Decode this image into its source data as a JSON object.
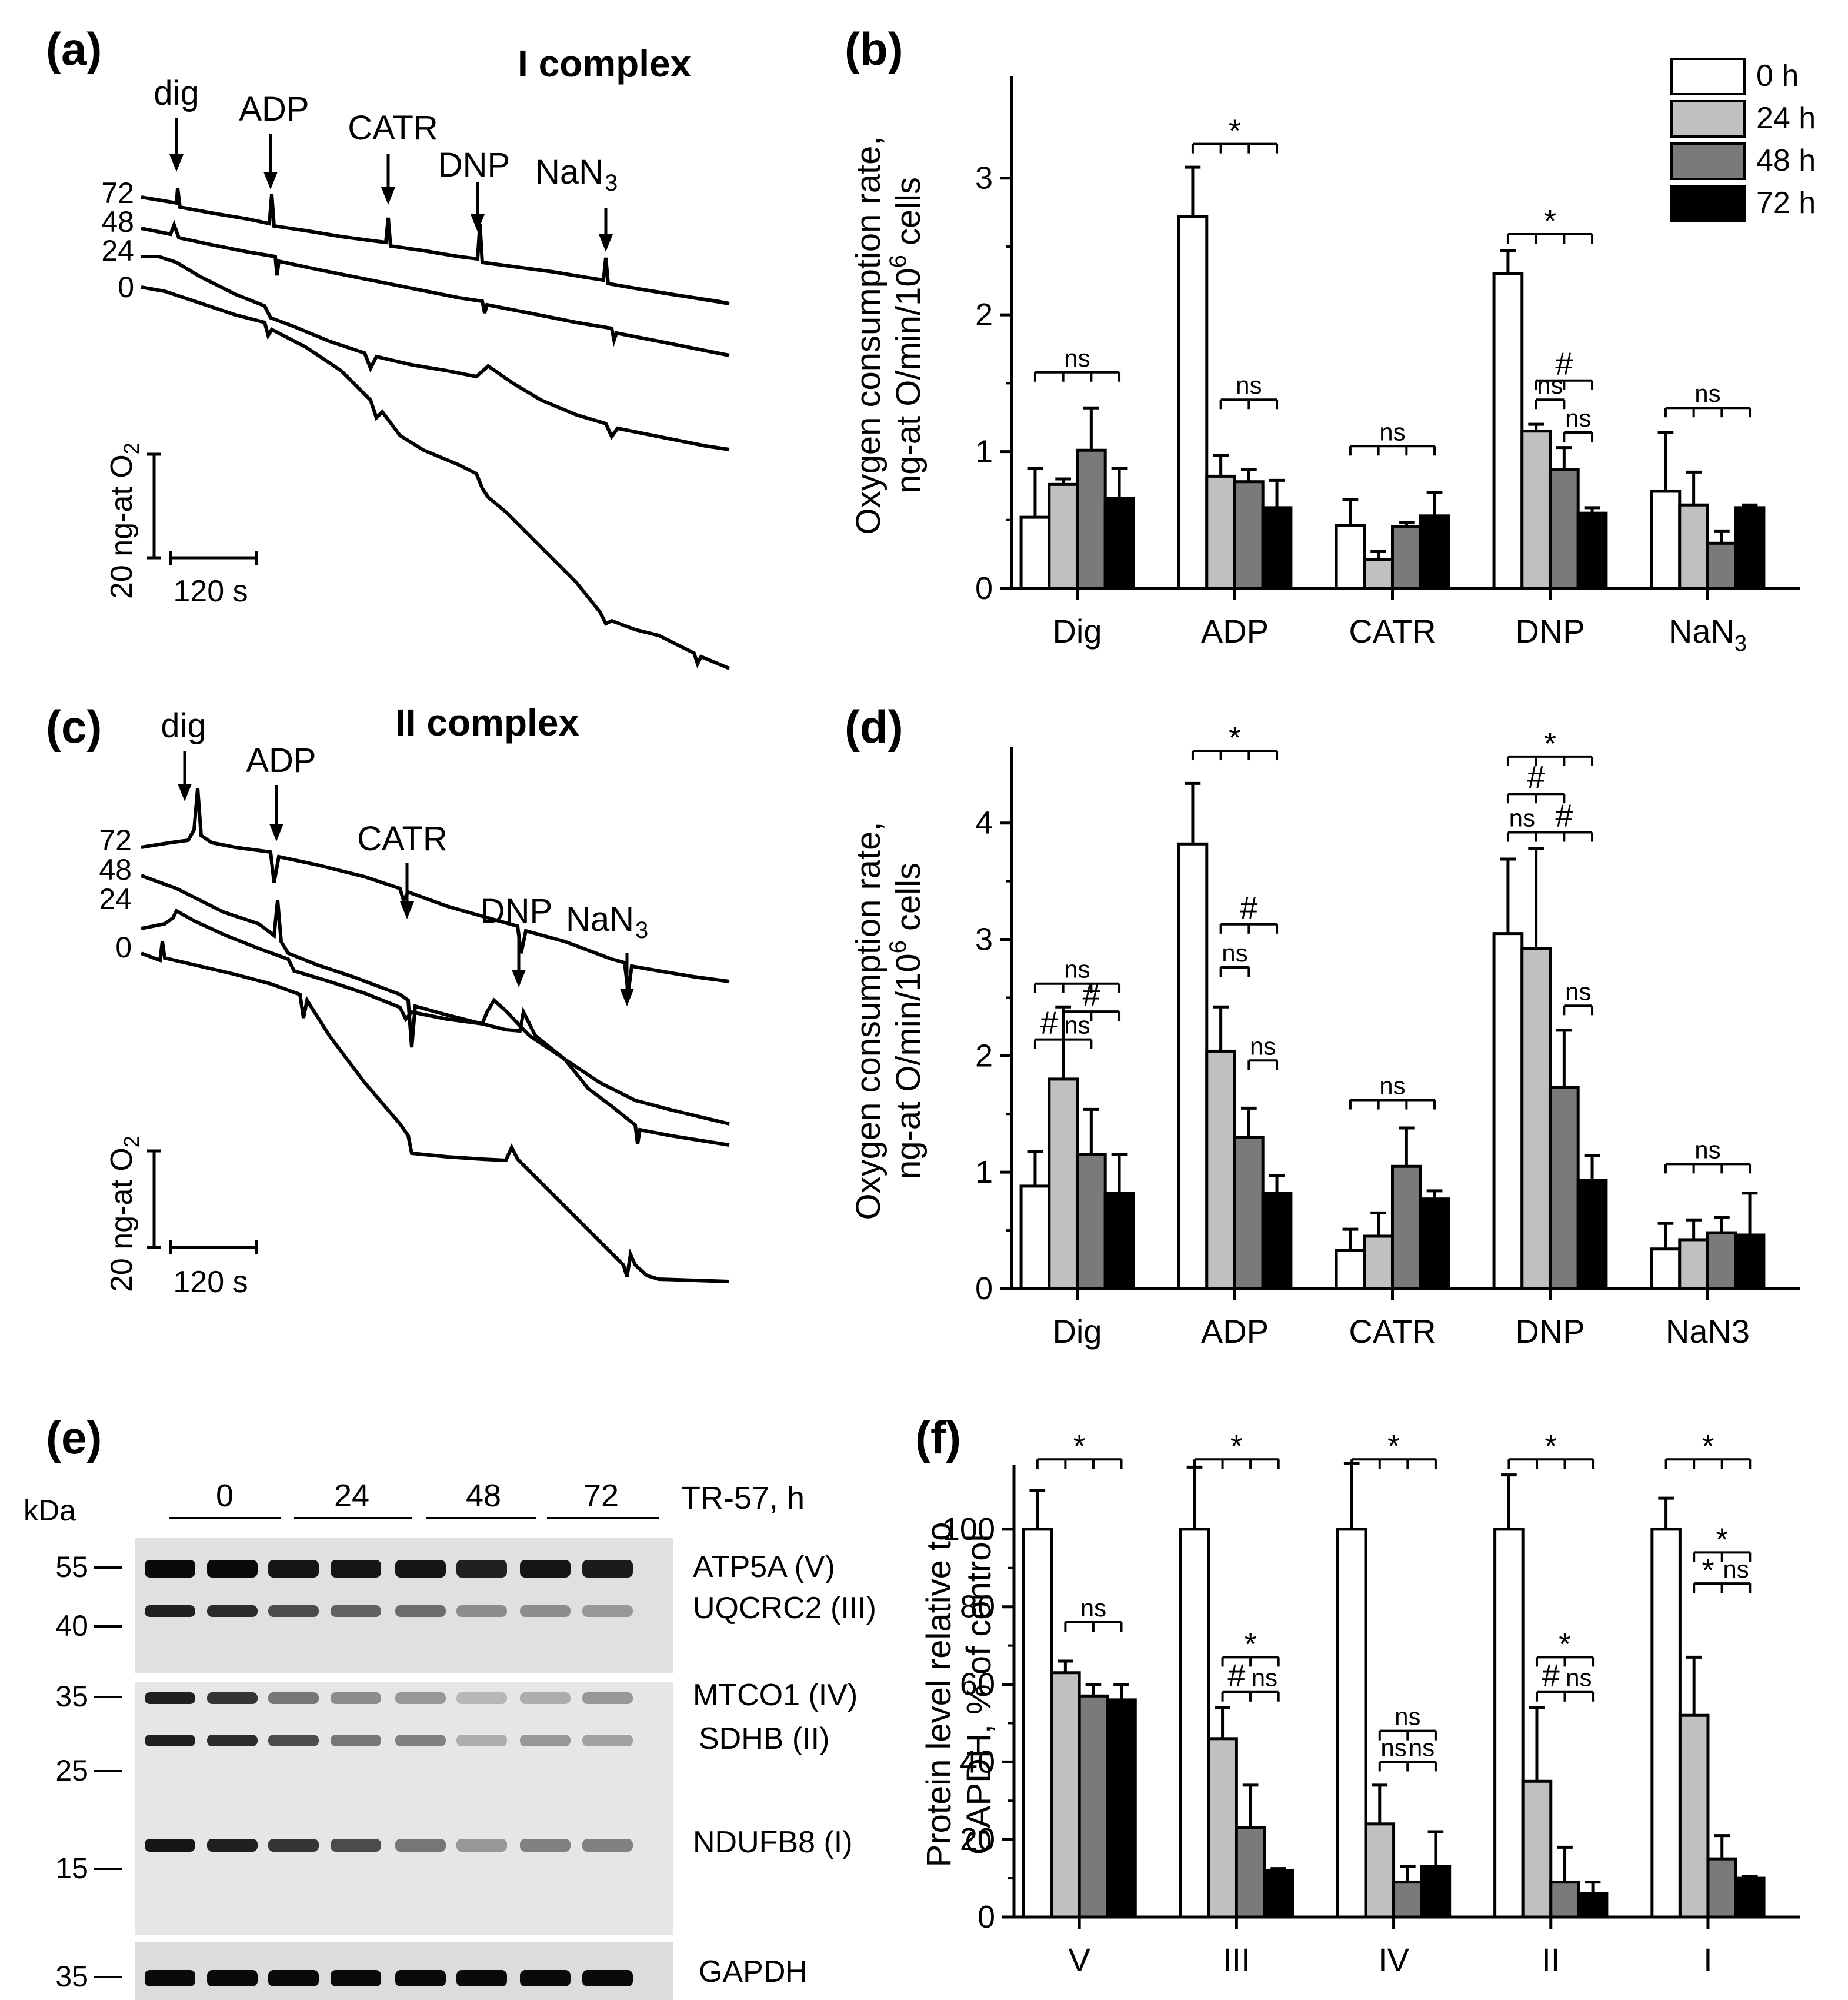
{
  "panels": {
    "a": {
      "letter": "(a)",
      "title": "I complex",
      "markers": [
        "dig",
        "ADP",
        "CATR",
        "DNP",
        "NaN",
        "3"
      ],
      "trace_labels": [
        "72",
        "48",
        "24",
        "0"
      ],
      "scale_y": "20 ng-at O",
      "scale_y_sub": "2",
      "scale_x": "120 s"
    },
    "c": {
      "letter": "(c)",
      "title": "II complex",
      "markers": [
        "dig",
        "ADP",
        "CATR",
        "DNP",
        "NaN",
        "3"
      ],
      "trace_labels": [
        "72",
        "48",
        "24",
        "0"
      ],
      "scale_y": "20 ng-at O",
      "scale_y_sub": "2",
      "scale_x": "120 s"
    },
    "e": {
      "letter": "(e)",
      "kda_label": "kDa",
      "axis_title": "TR-57, h",
      "lanes": [
        "0",
        "24",
        "48",
        "72"
      ],
      "mw_markers": [
        "55",
        "40",
        "35",
        "25",
        "15",
        "35"
      ],
      "proteins": [
        "ATP5A (V)",
        "UQCRC2 (III)",
        "MTCO1 (IV)",
        "SDHB (II)",
        "NDUFB8 (I)",
        "GAPDH"
      ],
      "band_intensity": {
        "ATP5A (V)": [
          1.0,
          1.0,
          0.95,
          0.95,
          0.95,
          0.9,
          0.95,
          0.92
        ],
        "UQCRC2 (III)": [
          0.9,
          0.85,
          0.7,
          0.6,
          0.55,
          0.4,
          0.4,
          0.35
        ],
        "MTCO1 (IV)": [
          0.9,
          0.8,
          0.5,
          0.4,
          0.35,
          0.2,
          0.25,
          0.35
        ],
        "SDHB (II)": [
          0.9,
          0.85,
          0.7,
          0.5,
          0.45,
          0.25,
          0.35,
          0.3
        ],
        "NDUFB8 (I)": [
          0.95,
          0.9,
          0.8,
          0.7,
          0.5,
          0.35,
          0.45,
          0.45
        ],
        "GAPDH": [
          1.0,
          1.0,
          1.0,
          1.0,
          1.0,
          1.0,
          1.0,
          1.0
        ]
      }
    },
    "legend": [
      "0 h",
      "24 h",
      "48 h",
      "72 h"
    ],
    "colors": [
      "#ffffff",
      "#c0c0c0",
      "#7a7a7a",
      "#000000"
    ]
  },
  "chart_data": [
    {
      "id": "b",
      "letter": "(b)",
      "type": "bar",
      "ylabel_line1": "Oxygen consumption rate,",
      "ylabel_line2": "ng-at O/min/10",
      "ylabel_sup": "6",
      "ylabel_line2_end": " cells",
      "ylim": [
        0,
        3.7
      ],
      "yticks": [
        "0",
        "1",
        "2",
        "3"
      ],
      "categories": [
        "Dig",
        "ADP",
        "CATR",
        "DNP",
        "NaN"
      ],
      "category_sub": [
        "",
        "",
        "",
        "",
        "3"
      ],
      "series": [
        {
          "name": "0 h",
          "values": [
            0.52,
            2.72,
            0.46,
            2.3,
            0.71
          ],
          "errors": [
            0.36,
            0.36,
            0.19,
            0.17,
            0.43
          ]
        },
        {
          "name": "24 h",
          "values": [
            0.76,
            0.82,
            0.21,
            1.15,
            0.61
          ],
          "errors": [
            0.04,
            0.15,
            0.06,
            0.05,
            0.24
          ]
        },
        {
          "name": "48 h",
          "values": [
            1.01,
            0.78,
            0.45,
            0.87,
            0.33
          ],
          "errors": [
            0.31,
            0.09,
            0.03,
            0.16,
            0.09
          ]
        },
        {
          "name": "72 h",
          "values": [
            0.66,
            0.59,
            0.53,
            0.55,
            0.59
          ],
          "errors": [
            0.22,
            0.2,
            0.17,
            0.04,
            0.02
          ]
        }
      ],
      "annotations": [
        {
          "text": "ns",
          "cat": 0,
          "from": 0,
          "to": 3,
          "y": 1.58
        },
        {
          "text": "*",
          "cat": 1,
          "from": 0,
          "to": 3,
          "y": 3.25
        },
        {
          "text": "ns",
          "cat": 1,
          "from": 1,
          "to": 3,
          "y": 1.38
        },
        {
          "text": "ns",
          "cat": 2,
          "from": 0,
          "to": 3,
          "y": 1.04
        },
        {
          "text": "*",
          "cat": 3,
          "from": 0,
          "to": 3,
          "y": 2.59
        },
        {
          "text": "#",
          "cat": 3,
          "from": 1,
          "to": 3,
          "y": 1.52
        },
        {
          "text": "ns",
          "cat": 3,
          "from": 1,
          "to": 2,
          "y": 1.38
        },
        {
          "text": "ns",
          "cat": 3,
          "from": 2,
          "to": 3,
          "y": 1.14
        },
        {
          "text": "ns",
          "cat": 4,
          "from": 0,
          "to": 3,
          "y": 1.32
        }
      ]
    },
    {
      "id": "d",
      "letter": "(d)",
      "type": "bar",
      "ylabel_line1": "Oxygen consumption rate,",
      "ylabel_line2": "ng-at O/min/10",
      "ylabel_sup": "6",
      "ylabel_line2_end": " cells",
      "ylim": [
        0,
        4.6
      ],
      "yticks": [
        "0",
        "1",
        "2",
        "3",
        "4"
      ],
      "categories": [
        "Dig",
        "ADP",
        "CATR",
        "DNP",
        "NaN3"
      ],
      "category_sub": [
        "",
        "",
        "",
        "",
        ""
      ],
      "series": [
        {
          "name": "0 h",
          "values": [
            0.88,
            3.82,
            0.33,
            3.05,
            0.34
          ],
          "errors": [
            0.3,
            0.52,
            0.18,
            0.64,
            0.22
          ]
        },
        {
          "name": "24 h",
          "values": [
            1.8,
            2.04,
            0.45,
            2.92,
            0.42
          ],
          "errors": [
            0.62,
            0.38,
            0.2,
            0.86,
            0.17
          ]
        },
        {
          "name": "48 h",
          "values": [
            1.15,
            1.3,
            1.05,
            1.73,
            0.48
          ],
          "errors": [
            0.39,
            0.25,
            0.33,
            0.49,
            0.13
          ]
        },
        {
          "name": "72 h",
          "values": [
            0.82,
            0.82,
            0.77,
            0.93,
            0.46
          ],
          "errors": [
            0.33,
            0.15,
            0.07,
            0.21,
            0.36
          ]
        }
      ],
      "annotations": [
        {
          "text": "ns",
          "cat": 0,
          "from": 0,
          "to": 3,
          "y": 2.62
        },
        {
          "text": "#",
          "cat": 0,
          "from": 1,
          "to": 3,
          "y": 2.38
        },
        {
          "text": "#",
          "cat": 0,
          "from": 0,
          "to": 1,
          "y": 2.14
        },
        {
          "text": "ns",
          "cat": 0,
          "from": 1,
          "to": 2,
          "y": 2.14
        },
        {
          "text": "*",
          "cat": 1,
          "from": 0,
          "to": 3,
          "y": 4.62
        },
        {
          "text": "#",
          "cat": 1,
          "from": 1,
          "to": 3,
          "y": 3.13
        },
        {
          "text": "ns",
          "cat": 1,
          "from": 1,
          "to": 2,
          "y": 2.76
        },
        {
          "text": "ns",
          "cat": 1,
          "from": 2,
          "to": 3,
          "y": 1.96
        },
        {
          "text": "ns",
          "cat": 2,
          "from": 0,
          "to": 3,
          "y": 1.62
        },
        {
          "text": "*",
          "cat": 3,
          "from": 0,
          "to": 3,
          "y": 4.57
        },
        {
          "text": "#",
          "cat": 3,
          "from": 0,
          "to": 2,
          "y": 4.25
        },
        {
          "text": "ns",
          "cat": 3,
          "from": 0,
          "to": 1,
          "y": 3.92
        },
        {
          "text": "#",
          "cat": 3,
          "from": 1,
          "to": 3,
          "y": 3.92
        },
        {
          "text": "ns",
          "cat": 3,
          "from": 2,
          "to": 3,
          "y": 2.43
        },
        {
          "text": "ns",
          "cat": 4,
          "from": 0,
          "to": 3,
          "y": 1.07
        }
      ]
    },
    {
      "id": "f",
      "letter": "(f)",
      "type": "bar",
      "ylabel_line1": "Protein level relative to",
      "ylabel_line2": "GAPDH, % of control",
      "ylabel_sup": "",
      "ylabel_line2_end": "",
      "ylim": [
        0,
        115
      ],
      "yticks": [
        "0",
        "20",
        "40",
        "60",
        "80",
        "100"
      ],
      "categories": [
        "V",
        "III",
        "IV",
        "II",
        "I"
      ],
      "category_sub": [
        "",
        "",
        "",
        "",
        ""
      ],
      "series": [
        {
          "name": "0 h",
          "values": [
            100,
            100,
            100,
            100,
            100
          ],
          "errors": [
            10,
            16,
            17,
            14,
            8
          ]
        },
        {
          "name": "24 h",
          "values": [
            63,
            46,
            24,
            35,
            52
          ],
          "errors": [
            3,
            8,
            10,
            19,
            15
          ]
        },
        {
          "name": "48 h",
          "values": [
            57,
            23,
            9,
            9,
            15
          ],
          "errors": [
            3,
            11,
            4,
            9,
            6
          ]
        },
        {
          "name": "72 h",
          "values": [
            56,
            12,
            13,
            6,
            10
          ],
          "errors": [
            4,
            0.5,
            9,
            3,
            0.5
          ]
        }
      ],
      "annotations": [
        {
          "text": "*",
          "cat": 0,
          "from": 0,
          "to": 3,
          "y": 118
        },
        {
          "text": "ns",
          "cat": 0,
          "from": 1,
          "to": 3,
          "y": 76
        },
        {
          "text": "*",
          "cat": 1,
          "from": 0,
          "to": 3,
          "y": 118
        },
        {
          "text": "*",
          "cat": 1,
          "from": 1,
          "to": 3,
          "y": 67
        },
        {
          "text": "#",
          "cat": 1,
          "from": 1,
          "to": 2,
          "y": 58
        },
        {
          "text": "ns",
          "cat": 1,
          "from": 2,
          "to": 3,
          "y": 58
        },
        {
          "text": "*",
          "cat": 2,
          "from": 0,
          "to": 3,
          "y": 118
        },
        {
          "text": "ns",
          "cat": 2,
          "from": 1,
          "to": 3,
          "y": 48
        },
        {
          "text": "ns",
          "cat": 2,
          "from": 1,
          "to": 2,
          "y": 40
        },
        {
          "text": "ns",
          "cat": 2,
          "from": 2,
          "to": 3,
          "y": 40
        },
        {
          "text": "*",
          "cat": 3,
          "from": 0,
          "to": 3,
          "y": 118
        },
        {
          "text": "*",
          "cat": 3,
          "from": 1,
          "to": 3,
          "y": 67
        },
        {
          "text": "#",
          "cat": 3,
          "from": 1,
          "to": 2,
          "y": 58
        },
        {
          "text": "ns",
          "cat": 3,
          "from": 2,
          "to": 3,
          "y": 58
        },
        {
          "text": "*",
          "cat": 4,
          "from": 0,
          "to": 3,
          "y": 118
        },
        {
          "text": "*",
          "cat": 4,
          "from": 1,
          "to": 3,
          "y": 94
        },
        {
          "text": "*",
          "cat": 4,
          "from": 1,
          "to": 2,
          "y": 86
        },
        {
          "text": "ns",
          "cat": 4,
          "from": 2,
          "to": 3,
          "y": 86
        }
      ]
    }
  ]
}
